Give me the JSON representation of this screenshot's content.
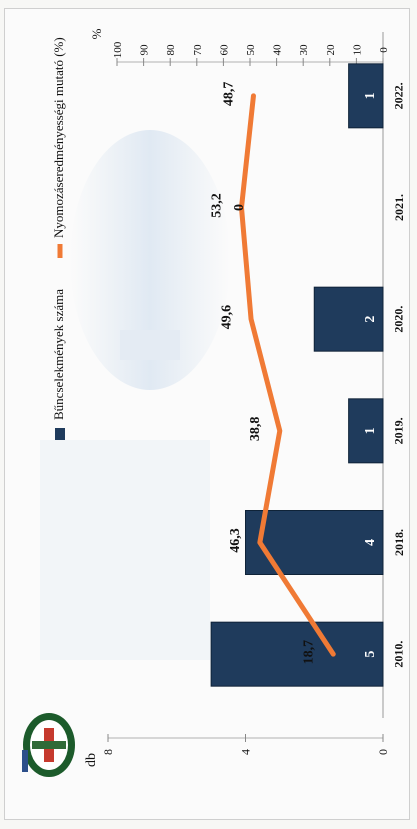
{
  "chart_data": {
    "type": "bar",
    "orientation": "rotated-90",
    "categories": [
      "2010.",
      "2018.",
      "2019.",
      "2020.",
      "2021.",
      "2022."
    ],
    "series": [
      {
        "name": "Bűncselekmények száma",
        "type": "bar",
        "axis": "left",
        "values": [
          5,
          4,
          1,
          2,
          0,
          1
        ],
        "labels": [
          "5",
          "4",
          "1",
          "2",
          "0",
          "1"
        ]
      },
      {
        "name": "Nyomozáseredményességi mutató (%)",
        "type": "line",
        "axis": "right",
        "values": [
          18.7,
          46.3,
          38.8,
          49.6,
          53.2,
          48.7
        ],
        "labels": [
          "18,7",
          "46,3",
          "38,8",
          "49,6",
          "53,2",
          "48,7"
        ]
      }
    ],
    "left_axis": {
      "unit": "db",
      "ticks": [
        "0",
        "4",
        "8"
      ],
      "range": [
        0,
        8
      ]
    },
    "right_axis": {
      "unit": "%",
      "ticks": [
        "0",
        "10",
        "20",
        "30",
        "40",
        "50",
        "60",
        "70",
        "80",
        "90",
        "100"
      ],
      "range": [
        0,
        100
      ]
    },
    "legend_placement": "top",
    "colors": {
      "bars": "#1f3b5c",
      "line": "#f07a35",
      "bar_label": "#ffffff",
      "text": "#111111"
    }
  }
}
